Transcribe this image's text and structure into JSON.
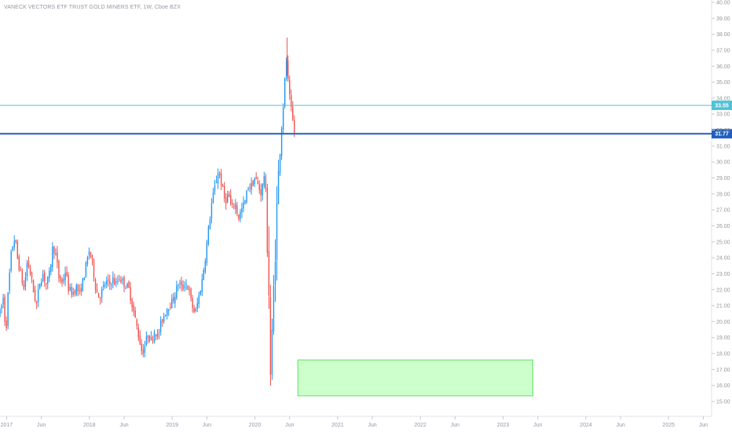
{
  "chart_data": {
    "type": "candlestick",
    "title": "VANECK VECTORS ETF TRUST GOLD MINERS ETF, 1W, Cboe BZX",
    "y_ticks": [
      "15.00",
      "16.00",
      "17.00",
      "18.00",
      "19.00",
      "20.00",
      "21.00",
      "22.00",
      "23.00",
      "24.00",
      "25.00",
      "26.00",
      "27.00",
      "28.00",
      "29.00",
      "30.00",
      "31.00",
      "32.00",
      "33.00",
      "34.00",
      "35.00",
      "36.00",
      "37.00",
      "38.00",
      "39.00",
      "40.00"
    ],
    "x_ticks": [
      {
        "label": "2017",
        "x": 2017.0
      },
      {
        "label": "Jun",
        "x": 2017.42
      },
      {
        "label": "2018",
        "x": 2018.0
      },
      {
        "label": "Jun",
        "x": 2018.42
      },
      {
        "label": "2019",
        "x": 2019.0
      },
      {
        "label": "Jun",
        "x": 2019.42
      },
      {
        "label": "2020",
        "x": 2020.0
      },
      {
        "label": "Jun",
        "x": 2020.42
      },
      {
        "label": "2021",
        "x": 2021.0
      },
      {
        "label": "Jun",
        "x": 2021.42
      },
      {
        "label": "2022",
        "x": 2022.0
      },
      {
        "label": "Jun",
        "x": 2022.42
      },
      {
        "label": "2023",
        "x": 2023.0
      },
      {
        "label": "Jun",
        "x": 2023.42
      },
      {
        "label": "2024",
        "x": 2024.0
      },
      {
        "label": "Jun",
        "x": 2024.42
      },
      {
        "label": "2025",
        "x": 2025.0
      },
      {
        "label": "Jun",
        "x": 2025.42
      }
    ],
    "xlim": [
      2016.92,
      2025.52
    ],
    "ylim": [
      14.5,
      40.2
    ],
    "up_color": "#2196f3",
    "down_color": "#ef5350",
    "horizontal_lines": [
      {
        "value": 33.55,
        "label": "33.55",
        "color": "#4fc3d6",
        "width": 1
      },
      {
        "value": 31.77,
        "label": "31.77",
        "color": "#1e5fbf",
        "width": 2
      }
    ],
    "zone": {
      "x_start": 2020.52,
      "x_end": 2023.36,
      "y_low": 15.35,
      "y_high": 17.6,
      "color": "#ccffcc",
      "stroke": "#66dd66"
    },
    "anchors": [
      [
        2016.92,
        20.5
      ],
      [
        2016.96,
        21.5
      ],
      [
        2016.99,
        19.2
      ],
      [
        2017.02,
        22.0
      ],
      [
        2017.06,
        24.5
      ],
      [
        2017.1,
        25.3
      ],
      [
        2017.13,
        24.0
      ],
      [
        2017.17,
        23.0
      ],
      [
        2017.21,
        22.0
      ],
      [
        2017.25,
        23.8
      ],
      [
        2017.29,
        23.0
      ],
      [
        2017.32,
        22.0
      ],
      [
        2017.36,
        21.0
      ],
      [
        2017.4,
        22.5
      ],
      [
        2017.44,
        23.0
      ],
      [
        2017.48,
        22.3
      ],
      [
        2017.52,
        23.0
      ],
      [
        2017.56,
        24.8
      ],
      [
        2017.6,
        24.0
      ],
      [
        2017.63,
        22.8
      ],
      [
        2017.67,
        22.4
      ],
      [
        2017.71,
        23.2
      ],
      [
        2017.75,
        22.0
      ],
      [
        2017.8,
        21.8
      ],
      [
        2017.84,
        22.2
      ],
      [
        2017.88,
        21.7
      ],
      [
        2017.92,
        22.5
      ],
      [
        2017.96,
        23.5
      ],
      [
        2018.0,
        24.5
      ],
      [
        2018.04,
        23.5
      ],
      [
        2018.08,
        22.0
      ],
      [
        2018.12,
        21.5
      ],
      [
        2018.16,
        22.0
      ],
      [
        2018.2,
        22.5
      ],
      [
        2018.24,
        22.3
      ],
      [
        2018.28,
        22.7
      ],
      [
        2018.32,
        22.3
      ],
      [
        2018.36,
        22.8
      ],
      [
        2018.4,
        22.5
      ],
      [
        2018.44,
        22.3
      ],
      [
        2018.48,
        22.0
      ],
      [
        2018.52,
        21.0
      ],
      [
        2018.56,
        20.0
      ],
      [
        2018.6,
        19.0
      ],
      [
        2018.64,
        18.0
      ],
      [
        2018.67,
        18.5
      ],
      [
        2018.71,
        19.2
      ],
      [
        2018.75,
        18.8
      ],
      [
        2018.79,
        19.5
      ],
      [
        2018.83,
        19.0
      ],
      [
        2018.87,
        20.0
      ],
      [
        2018.91,
        20.5
      ],
      [
        2018.95,
        21.0
      ],
      [
        2019.0,
        21.2
      ],
      [
        2019.04,
        21.8
      ],
      [
        2019.08,
        22.5
      ],
      [
        2019.12,
        22.0
      ],
      [
        2019.16,
        22.5
      ],
      [
        2019.2,
        22.0
      ],
      [
        2019.24,
        21.0
      ],
      [
        2019.28,
        20.5
      ],
      [
        2019.32,
        21.5
      ],
      [
        2019.36,
        22.5
      ],
      [
        2019.4,
        24.0
      ],
      [
        2019.44,
        25.8
      ],
      [
        2019.48,
        27.5
      ],
      [
        2019.52,
        28.5
      ],
      [
        2019.56,
        29.5
      ],
      [
        2019.6,
        28.5
      ],
      [
        2019.64,
        27.5
      ],
      [
        2019.68,
        28.0
      ],
      [
        2019.72,
        27.0
      ],
      [
        2019.76,
        27.5
      ],
      [
        2019.8,
        26.5
      ],
      [
        2019.84,
        27.0
      ],
      [
        2019.88,
        27.5
      ],
      [
        2019.92,
        28.5
      ],
      [
        2019.96,
        28.5
      ],
      [
        2020.0,
        29.0
      ],
      [
        2020.04,
        28.5
      ],
      [
        2020.08,
        28.0
      ],
      [
        2020.12,
        29.5
      ],
      [
        2020.14,
        27.0
      ],
      [
        2020.17,
        22.0
      ],
      [
        2020.19,
        16.5
      ],
      [
        2020.21,
        19.0
      ],
      [
        2020.24,
        24.0
      ],
      [
        2020.27,
        27.5
      ],
      [
        2020.29,
        29.5
      ],
      [
        2020.32,
        32.0
      ],
      [
        2020.35,
        34.0
      ],
      [
        2020.38,
        36.5
      ],
      [
        2020.4,
        35.0
      ],
      [
        2020.43,
        33.5
      ],
      [
        2020.46,
        32.5
      ],
      [
        2020.48,
        31.8
      ]
    ]
  }
}
